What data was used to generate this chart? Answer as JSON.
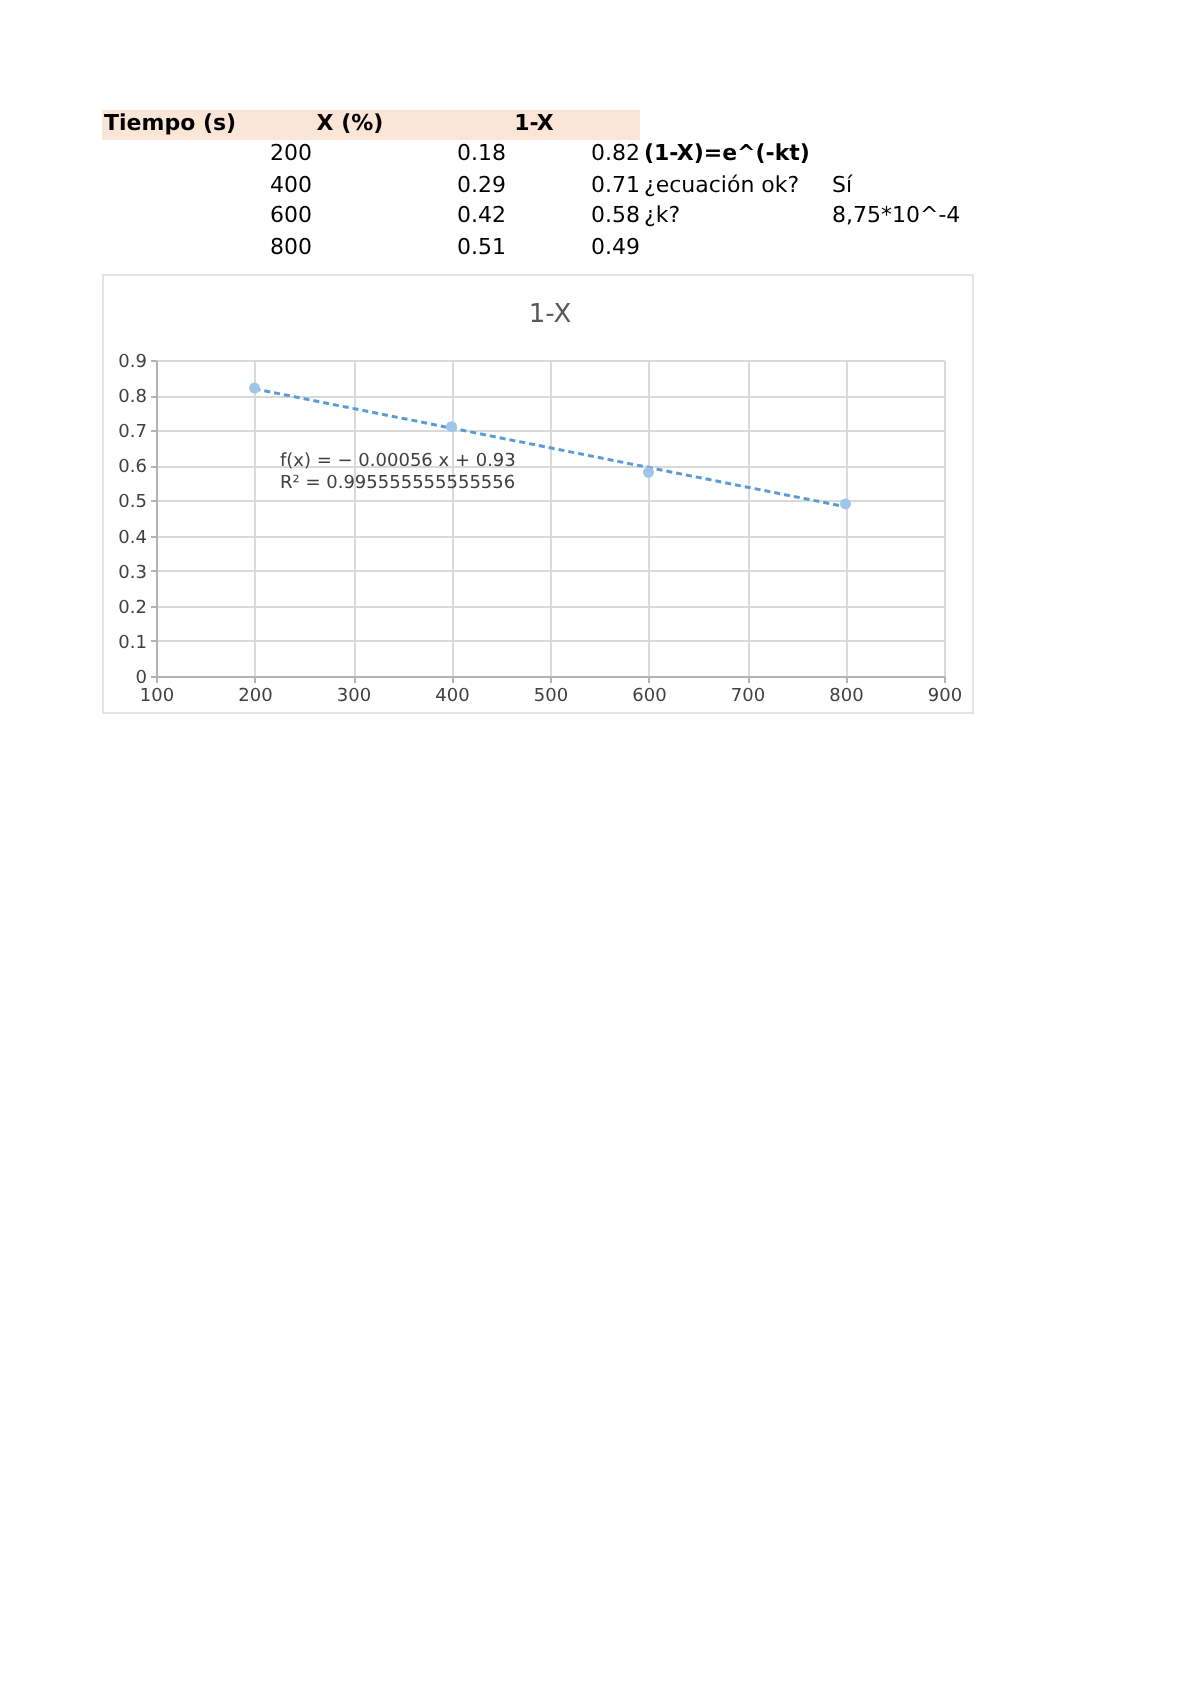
{
  "chart_data": {
    "type": "scatter",
    "title": "1-X",
    "x": [
      200,
      400,
      600,
      800
    ],
    "series": [
      {
        "color": "#9fc5e8",
        "values": [
          0.82,
          0.71,
          0.58,
          0.49
        ]
      },
      {
        "type": "line",
        "x": [
          200,
          800
        ],
        "values": [
          0.818,
          0.482
        ],
        "color": "#5b9bd5",
        "line_style": "dashed",
        "marker": "none"
      }
    ],
    "xlim": [
      100,
      900
    ],
    "xticks": [
      100,
      200,
      300,
      400,
      500,
      600,
      700,
      800,
      900
    ],
    "ylim": [
      0,
      0.9
    ],
    "yticks": [
      0,
      0.1,
      0.2,
      0.3,
      0.4,
      0.5,
      0.6,
      0.7,
      0.8,
      0.9
    ],
    "grid": true,
    "marker": "circle",
    "annotations": [
      "Tiempo (s)",
      "X (%)",
      "1-X",
      "200",
      "0.18",
      "0.82",
      "(1-X)=e^(-kt)",
      "400",
      "0.29",
      "0.71",
      "¿ecuación ok?",
      "Sí",
      "600",
      "0.42",
      "0.58",
      "¿k?",
      "8,75*10^-4",
      "800",
      "0.51",
      "0.49",
      "f(x) = − 0.00056 x + 0.93",
      "R² = 0.995555555555556"
    ]
  }
}
